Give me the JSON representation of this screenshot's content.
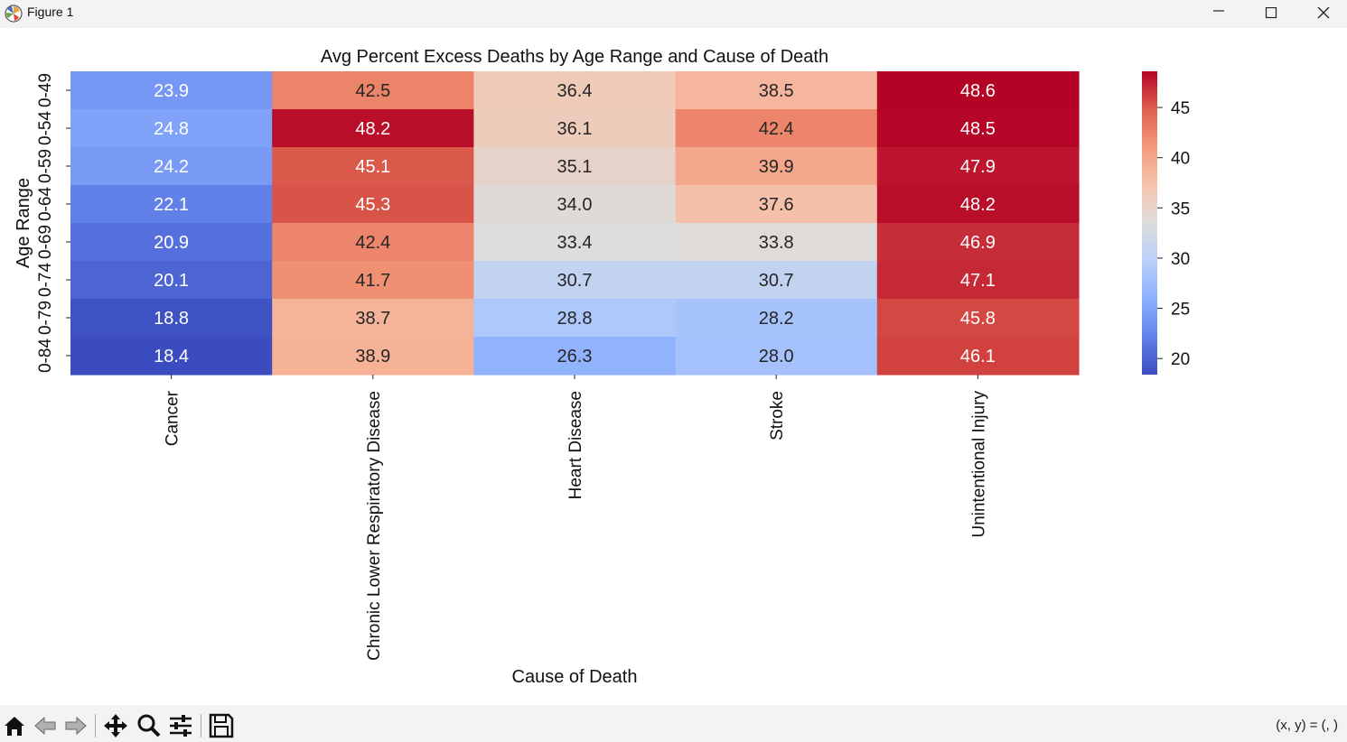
{
  "window": {
    "title": "Figure 1",
    "minimize_icon": "minimize-icon",
    "maximize_icon": "maximize-icon",
    "close_icon": "close-icon"
  },
  "toolbar": {
    "tools": [
      {
        "name": "home-button",
        "icon": "home-icon"
      },
      {
        "name": "back-button",
        "icon": "arrow-left-icon"
      },
      {
        "name": "forward-button",
        "icon": "arrow-right-icon"
      },
      {
        "name": "pan-button",
        "icon": "move-icon"
      },
      {
        "name": "zoom-button",
        "icon": "magnifier-icon"
      },
      {
        "name": "configure-subplots-button",
        "icon": "sliders-icon"
      },
      {
        "name": "save-button",
        "icon": "floppy-icon"
      }
    ],
    "coords": "(x, y) = (, )"
  },
  "chart_data": {
    "type": "heatmap",
    "title": "Avg Percent Excess Deaths by Age Range and Cause of Death",
    "xlabel": "Cause of Death",
    "ylabel": "Age Range",
    "x_categories": [
      "Cancer",
      "Chronic Lower Respiratory Disease",
      "Heart Disease",
      "Stroke",
      "Unintentional Injury"
    ],
    "y_categories": [
      "0-49",
      "0-54",
      "0-59",
      "0-64",
      "0-69",
      "0-74",
      "0-79",
      "0-84"
    ],
    "values": [
      [
        23.9,
        42.5,
        36.4,
        38.5,
        48.6
      ],
      [
        24.8,
        48.2,
        36.1,
        42.4,
        48.5
      ],
      [
        24.2,
        45.1,
        35.1,
        39.9,
        47.9
      ],
      [
        22.1,
        45.3,
        34.0,
        37.6,
        48.2
      ],
      [
        20.9,
        42.4,
        33.4,
        33.8,
        46.9
      ],
      [
        20.1,
        41.7,
        30.7,
        30.7,
        47.1
      ],
      [
        18.8,
        38.7,
        28.8,
        28.2,
        45.8
      ],
      [
        18.4,
        38.9,
        26.3,
        28.0,
        46.1
      ]
    ],
    "colormap": "coolwarm",
    "vmin": 18.4,
    "vmax": 48.6,
    "colorbar_ticks": [
      20,
      25,
      30,
      35,
      40,
      45
    ],
    "annotations": true
  }
}
